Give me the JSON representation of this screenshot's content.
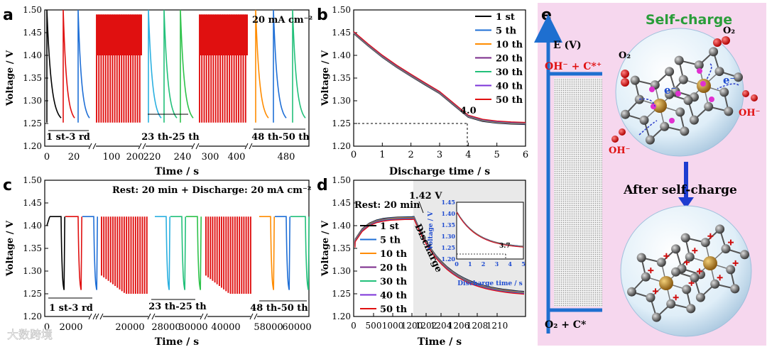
{
  "panel_letters": {
    "a": "a",
    "b": "b",
    "c": "c",
    "d": "d",
    "e": "e"
  },
  "colors": {
    "black": "#000000",
    "blue": "#1f6fd6",
    "orange": "#ff8c00",
    "purple": "#7a2a8a",
    "teal": "#22c07a",
    "violet": "#7b33d8",
    "red": "#e01010",
    "green": "#2ec24a",
    "cyan": "#2bb0e0",
    "panel_e_bg": "#f6d7ee",
    "axis_blue": "#1e6fd0"
  },
  "chart_data": [
    {
      "id": "a",
      "type": "line",
      "title": "",
      "annotation": "20 mA cm⁻²",
      "ylabel": "Voltage / V",
      "xlabel": "Time / s",
      "ylim": [
        1.2,
        1.5
      ],
      "yticks": [
        "1.50",
        "1.45",
        "1.40",
        "1.35",
        "1.30",
        "1.25",
        "1.20"
      ],
      "segments": [
        {
          "xticks": [
            "0",
            "20"
          ],
          "label": "1 st-3 rd"
        },
        {
          "xticks": [
            "100",
            "200"
          ],
          "label": ""
        },
        {
          "xticks": [
            "220",
            "240"
          ],
          "label": "23 th-25 th"
        },
        {
          "xticks": [
            "300",
            "400"
          ],
          "label": ""
        },
        {
          "xticks": [
            "480"
          ],
          "label": "48 th-50 th"
        }
      ]
    },
    {
      "id": "b",
      "type": "line",
      "xlabel": "Discharge time / s",
      "ylabel": "Voltage / V",
      "xlim": [
        0,
        6
      ],
      "ylim": [
        1.2,
        1.5
      ],
      "xticks": [
        "0",
        "1",
        "2",
        "3",
        "4",
        "5",
        "6"
      ],
      "yticks": [
        "1.50",
        "1.45",
        "1.40",
        "1.35",
        "1.30",
        "1.25",
        "1.20"
      ],
      "marker_x": 4.0,
      "marker_label": "4.0",
      "legend": [
        "1 st",
        "5 th",
        "10 th",
        "20 th",
        "30 th",
        "40 th",
        "50 th"
      ],
      "series": [
        {
          "name": "1 st",
          "x": [
            0,
            0.5,
            1,
            1.5,
            2,
            2.5,
            3,
            3.5,
            4,
            4.5,
            5,
            5.5,
            6
          ],
          "values": [
            1.45,
            1.423,
            1.398,
            1.376,
            1.356,
            1.337,
            1.318,
            1.292,
            1.266,
            1.257,
            1.253,
            1.251,
            1.25
          ]
        }
      ]
    },
    {
      "id": "c",
      "type": "line",
      "annotation": "Rest: 20 min + Discharge: 20 mA cm⁻²",
      "ylabel": "Voltage / V",
      "xlabel": "Time / s",
      "ylim": [
        1.2,
        1.5
      ],
      "yticks": [
        "1.50",
        "1.45",
        "1.40",
        "1.35",
        "1.30",
        "1.25",
        "1.20"
      ],
      "segments": [
        {
          "xticks": [
            "0",
            "2000"
          ],
          "label": "1 st-3 rd"
        },
        {
          "xticks": [
            "20000"
          ],
          "label": ""
        },
        {
          "xticks": [
            "28000",
            "30000"
          ],
          "label": "23 th-25 th"
        },
        {
          "xticks": [
            "40000"
          ],
          "label": ""
        },
        {
          "xticks": [
            "58000",
            "60000"
          ],
          "label": "48 th-50 th"
        }
      ]
    },
    {
      "id": "d",
      "type": "line",
      "xlabel": "Time / s",
      "ylabel": "Voltage / V",
      "ylim": [
        1.2,
        1.5
      ],
      "xticks": [
        "0",
        "500",
        "1000",
        "1200",
        "1202",
        "1204",
        "1206",
        "1208",
        "1210"
      ],
      "yticks": [
        "1.50",
        "1.45",
        "1.40",
        "1.35",
        "1.30",
        "1.25",
        "1.20"
      ],
      "annotations": [
        "Rest: 20 min",
        "1.42 V",
        "Discharge"
      ],
      "legend": [
        "1 st",
        "5 th",
        "10 th",
        "20 th",
        "30 th",
        "40 th",
        "50 th"
      ],
      "inset": {
        "xlabel": "Discharge time / s",
        "ylabel": "Voltage / V",
        "xticks": [
          "0",
          "1",
          "2",
          "3",
          "4",
          "5"
        ],
        "yticks": [
          "1.45",
          "1.40",
          "1.35",
          "1.30",
          "1.25",
          "1.20"
        ],
        "marker_label": "3.7",
        "marker_x": 3.7
      }
    }
  ],
  "panel_e": {
    "axis_label": "E (V)",
    "top_label": "OH⁻ + C*⁺",
    "bottom_label": "O₂ + C*",
    "self_charge": "Self-charge",
    "after": "After self-charge",
    "o2": "O₂",
    "oh": "OH⁻",
    "e_minus": "e⁻"
  },
  "watermark": "大数跨境"
}
